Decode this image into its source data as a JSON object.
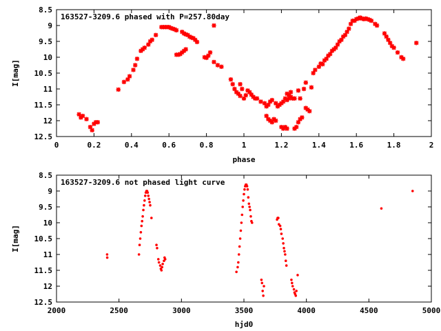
{
  "chart_data": [
    {
      "type": "scatter",
      "title": "163527-3209.6 phased with P=257.80day",
      "xlabel": "phase",
      "ylabel": "I[mag]",
      "xlim": [
        0,
        2
      ],
      "ylim": [
        8.5,
        12.5
      ],
      "y_inverted": true,
      "xticks": [
        "0",
        "0.2",
        "0.4",
        "0.6",
        "0.8",
        "1",
        "1.2",
        "1.4",
        "1.6",
        "1.8",
        "2"
      ],
      "yticks": [
        "8.5",
        "9",
        "9.5",
        "10",
        "10.5",
        "11",
        "11.5",
        "12",
        "12.5"
      ],
      "marker_color": "#ff0000",
      "series": [
        {
          "points": [
            [
              0.12,
              11.8
            ],
            [
              0.13,
              11.9
            ],
            [
              0.14,
              11.85
            ],
            [
              0.16,
              11.95
            ],
            [
              0.18,
              12.2
            ],
            [
              0.19,
              12.3
            ],
            [
              0.2,
              12.1
            ],
            [
              0.21,
              12.05
            ],
            [
              0.22,
              12.05
            ],
            [
              0.33,
              11.02
            ],
            [
              0.36,
              10.78
            ],
            [
              0.38,
              10.7
            ],
            [
              0.39,
              10.6
            ],
            [
              0.41,
              10.4
            ],
            [
              0.42,
              10.25
            ],
            [
              0.43,
              10.05
            ],
            [
              0.45,
              9.8
            ],
            [
              0.46,
              9.75
            ],
            [
              0.47,
              9.7
            ],
            [
              0.49,
              9.6
            ],
            [
              0.5,
              9.5
            ],
            [
              0.51,
              9.45
            ],
            [
              0.53,
              9.3
            ],
            [
              0.56,
              9.05
            ],
            [
              0.57,
              9.05
            ],
            [
              0.58,
              9.05
            ],
            [
              0.59,
              9.05
            ],
            [
              0.6,
              9.05
            ],
            [
              0.61,
              9.08
            ],
            [
              0.62,
              9.1
            ],
            [
              0.63,
              9.12
            ],
            [
              0.64,
              9.15
            ],
            [
              0.64,
              9.92
            ],
            [
              0.65,
              9.92
            ],
            [
              0.66,
              9.9
            ],
            [
              0.67,
              9.85
            ],
            [
              0.68,
              9.8
            ],
            [
              0.69,
              9.75
            ],
            [
              0.67,
              9.2
            ],
            [
              0.68,
              9.25
            ],
            [
              0.69,
              9.28
            ],
            [
              0.7,
              9.3
            ],
            [
              0.71,
              9.35
            ],
            [
              0.72,
              9.38
            ],
            [
              0.73,
              9.4
            ],
            [
              0.74,
              9.45
            ],
            [
              0.75,
              9.52
            ],
            [
              0.79,
              10.0
            ],
            [
              0.8,
              10.02
            ],
            [
              0.81,
              9.95
            ],
            [
              0.82,
              9.85
            ],
            [
              0.84,
              9.0
            ],
            [
              0.84,
              10.15
            ],
            [
              0.86,
              10.25
            ],
            [
              0.88,
              10.3
            ],
            [
              0.93,
              10.7
            ],
            [
              0.94,
              10.85
            ],
            [
              0.95,
              11.0
            ],
            [
              0.96,
              11.1
            ],
            [
              0.97,
              11.15
            ],
            [
              0.98,
              11.22
            ],
            [
              0.98,
              10.85
            ],
            [
              0.99,
              11.0
            ],
            [
              1.0,
              11.3
            ],
            [
              1.01,
              11.2
            ],
            [
              1.02,
              11.05
            ],
            [
              1.03,
              11.1
            ],
            [
              1.04,
              11.18
            ],
            [
              1.05,
              11.25
            ],
            [
              1.06,
              11.3
            ],
            [
              1.07,
              11.3
            ],
            [
              1.09,
              11.4
            ],
            [
              1.11,
              11.45
            ],
            [
              1.12,
              11.55
            ],
            [
              1.13,
              11.5
            ],
            [
              1.14,
              11.4
            ],
            [
              1.15,
              11.35
            ],
            [
              1.12,
              11.85
            ],
            [
              1.13,
              11.95
            ],
            [
              1.14,
              12.0
            ],
            [
              1.15,
              12.05
            ],
            [
              1.16,
              11.95
            ],
            [
              1.17,
              12.0
            ],
            [
              1.17,
              11.45
            ],
            [
              1.18,
              11.55
            ],
            [
              1.19,
              11.5
            ],
            [
              1.2,
              11.45
            ],
            [
              1.2,
              12.2
            ],
            [
              1.21,
              12.25
            ],
            [
              1.22,
              12.2
            ],
            [
              1.23,
              12.25
            ],
            [
              1.21,
              11.4
            ],
            [
              1.22,
              11.3
            ],
            [
              1.23,
              11.35
            ],
            [
              1.24,
              11.3
            ],
            [
              1.25,
              11.25
            ],
            [
              1.26,
              11.3
            ],
            [
              1.27,
              11.3
            ],
            [
              1.23,
              11.15
            ],
            [
              1.24,
              11.2
            ],
            [
              1.25,
              11.1
            ],
            [
              1.27,
              12.25
            ],
            [
              1.28,
              12.2
            ],
            [
              1.29,
              12.05
            ],
            [
              1.3,
              11.95
            ],
            [
              1.31,
              11.9
            ],
            [
              1.29,
              11.05
            ],
            [
              1.3,
              11.3
            ],
            [
              1.32,
              11.0
            ],
            [
              1.33,
              11.6
            ],
            [
              1.34,
              11.65
            ],
            [
              1.35,
              11.7
            ],
            [
              1.33,
              10.8
            ],
            [
              1.36,
              10.95
            ],
            [
              1.37,
              10.5
            ],
            [
              1.38,
              10.4
            ],
            [
              1.4,
              10.3
            ],
            [
              1.41,
              10.2
            ],
            [
              1.42,
              10.22
            ],
            [
              1.43,
              10.1
            ],
            [
              1.44,
              10.05
            ],
            [
              1.45,
              9.95
            ],
            [
              1.46,
              9.9
            ],
            [
              1.47,
              9.8
            ],
            [
              1.48,
              9.75
            ],
            [
              1.49,
              9.7
            ],
            [
              1.5,
              9.6
            ],
            [
              1.51,
              9.5
            ],
            [
              1.52,
              9.45
            ],
            [
              1.53,
              9.35
            ],
            [
              1.54,
              9.3
            ],
            [
              1.55,
              9.2
            ],
            [
              1.56,
              9.1
            ],
            [
              1.57,
              8.95
            ],
            [
              1.58,
              8.85
            ],
            [
              1.59,
              8.85
            ],
            [
              1.6,
              8.8
            ],
            [
              1.61,
              8.78
            ],
            [
              1.62,
              8.75
            ],
            [
              1.63,
              8.78
            ],
            [
              1.64,
              8.8
            ],
            [
              1.65,
              8.78
            ],
            [
              1.66,
              8.8
            ],
            [
              1.67,
              8.82
            ],
            [
              1.68,
              8.85
            ],
            [
              1.7,
              8.95
            ],
            [
              1.71,
              9.0
            ],
            [
              1.75,
              9.25
            ],
            [
              1.76,
              9.35
            ],
            [
              1.77,
              9.45
            ],
            [
              1.78,
              9.55
            ],
            [
              1.79,
              9.65
            ],
            [
              1.8,
              9.7
            ],
            [
              1.82,
              9.85
            ],
            [
              1.84,
              10.0
            ],
            [
              1.85,
              10.05
            ],
            [
              1.92,
              9.55
            ]
          ]
        }
      ]
    },
    {
      "type": "scatter",
      "title": "163527-3209.6 not phased light curve",
      "xlabel": "hjd0",
      "ylabel": "I[mag]",
      "xlim": [
        2000,
        5000
      ],
      "ylim": [
        8.5,
        12.5
      ],
      "y_inverted": true,
      "xticks": [
        "2000",
        "2500",
        "3000",
        "3500",
        "4000",
        "4500",
        "5000"
      ],
      "yticks": [
        "8.5",
        "9",
        "9.5",
        "10",
        "10.5",
        "11",
        "11.5",
        "12",
        "12.5"
      ],
      "marker_color": "#ff0000",
      "series": [
        {
          "points": [
            [
              2405,
              11.0
            ],
            [
              2406,
              11.1
            ],
            [
              2660,
              11.0
            ],
            [
              2665,
              10.7
            ],
            [
              2670,
              10.5
            ],
            [
              2675,
              10.3
            ],
            [
              2680,
              10.1
            ],
            [
              2685,
              9.95
            ],
            [
              2690,
              9.8
            ],
            [
              2695,
              9.6
            ],
            [
              2700,
              9.45
            ],
            [
              2705,
              9.3
            ],
            [
              2710,
              9.15
            ],
            [
              2715,
              9.05
            ],
            [
              2720,
              9.0
            ],
            [
              2725,
              9.0
            ],
            [
              2730,
              9.05
            ],
            [
              2735,
              9.15
            ],
            [
              2740,
              9.25
            ],
            [
              2745,
              9.35
            ],
            [
              2750,
              9.45
            ],
            [
              2760,
              9.85
            ],
            [
              2800,
              10.7
            ],
            [
              2805,
              10.8
            ],
            [
              2815,
              11.15
            ],
            [
              2820,
              11.25
            ],
            [
              2830,
              11.35
            ],
            [
              2835,
              11.45
            ],
            [
              2840,
              11.5
            ],
            [
              2845,
              11.4
            ],
            [
              2850,
              11.3
            ],
            [
              2860,
              11.2
            ],
            [
              2865,
              11.1
            ],
            [
              2870,
              11.15
            ],
            [
              3440,
              11.55
            ],
            [
              3450,
              11.4
            ],
            [
              3455,
              11.25
            ],
            [
              3460,
              11.0
            ],
            [
              3465,
              10.75
            ],
            [
              3470,
              10.5
            ],
            [
              3475,
              10.25
            ],
            [
              3480,
              10.0
            ],
            [
              3485,
              9.75
            ],
            [
              3490,
              9.5
            ],
            [
              3495,
              9.3
            ],
            [
              3500,
              9.1
            ],
            [
              3505,
              8.95
            ],
            [
              3510,
              8.85
            ],
            [
              3515,
              8.8
            ],
            [
              3520,
              8.8
            ],
            [
              3525,
              8.85
            ],
            [
              3530,
              8.95
            ],
            [
              3535,
              9.2
            ],
            [
              3540,
              9.4
            ],
            [
              3545,
              9.5
            ],
            [
              3550,
              9.6
            ],
            [
              3555,
              9.8
            ],
            [
              3560,
              9.95
            ],
            [
              3565,
              10.0
            ],
            [
              3640,
              11.8
            ],
            [
              3645,
              11.9
            ],
            [
              3650,
              12.15
            ],
            [
              3655,
              12.3
            ],
            [
              3660,
              12.0
            ],
            [
              3765,
              9.9
            ],
            [
              3770,
              9.85
            ],
            [
              3775,
              9.85
            ],
            [
              3780,
              10.05
            ],
            [
              3790,
              10.1
            ],
            [
              3795,
              10.2
            ],
            [
              3800,
              10.35
            ],
            [
              3810,
              10.5
            ],
            [
              3815,
              10.65
            ],
            [
              3820,
              10.8
            ],
            [
              3825,
              10.9
            ],
            [
              3830,
              11.0
            ],
            [
              3835,
              11.2
            ],
            [
              3840,
              11.35
            ],
            [
              3880,
              11.8
            ],
            [
              3885,
              11.9
            ],
            [
              3890,
              12.0
            ],
            [
              3900,
              12.1
            ],
            [
              3905,
              12.2
            ],
            [
              3910,
              12.25
            ],
            [
              3915,
              12.3
            ],
            [
              3920,
              12.15
            ],
            [
              3930,
              11.65
            ],
            [
              4600,
              9.55
            ],
            [
              4850,
              9.0
            ]
          ]
        }
      ]
    }
  ]
}
